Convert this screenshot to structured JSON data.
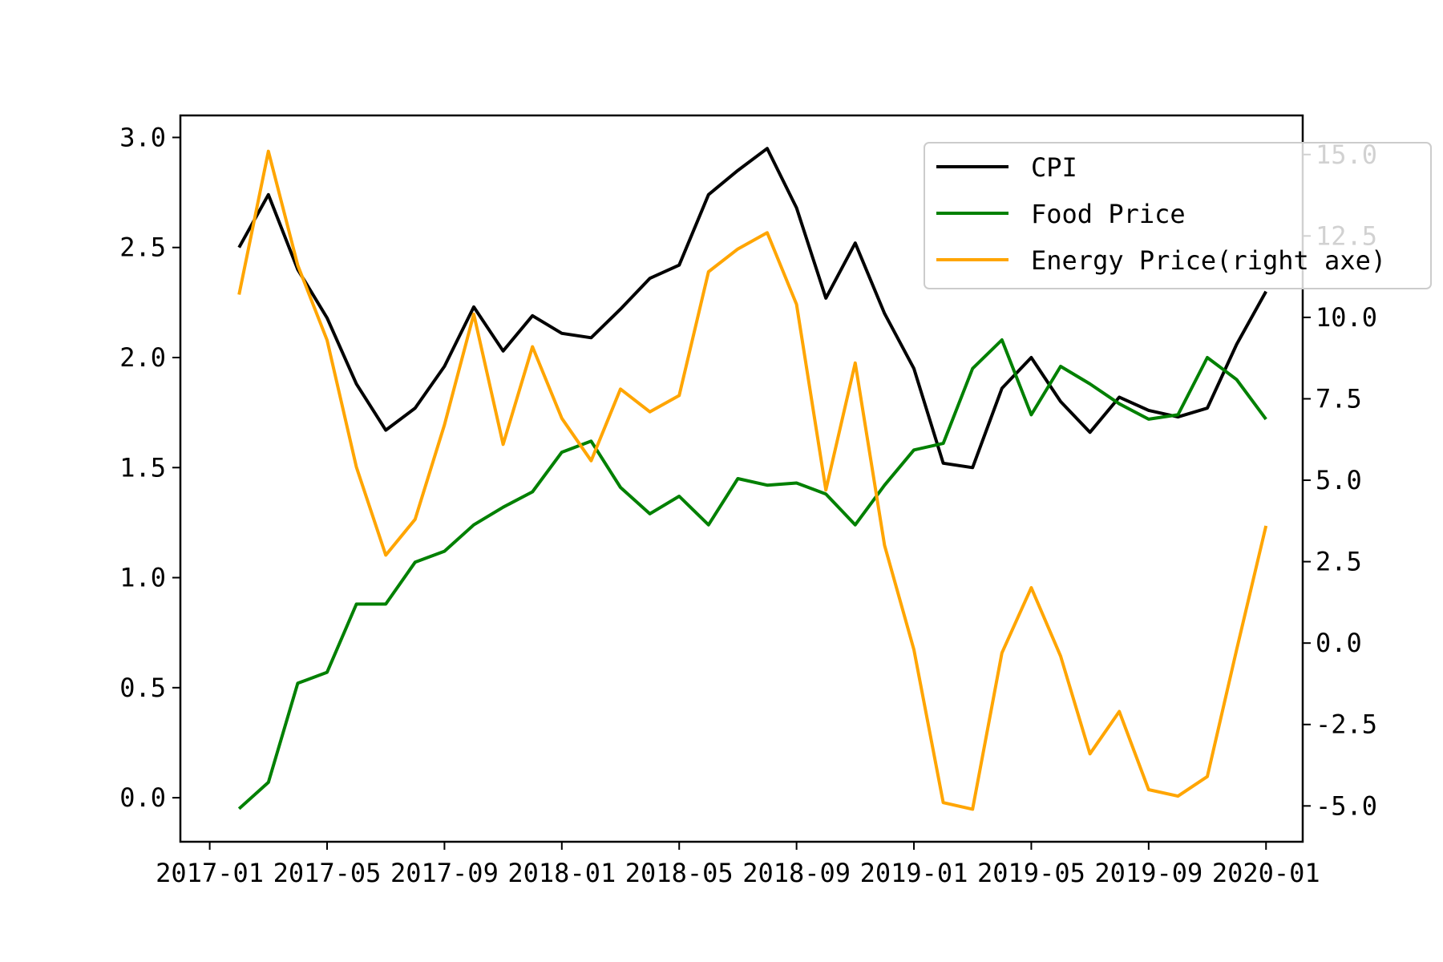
{
  "chart_data": {
    "type": "line",
    "x": [
      "2017-02",
      "2017-03",
      "2017-04",
      "2017-05",
      "2017-06",
      "2017-07",
      "2017-08",
      "2017-09",
      "2017-10",
      "2017-11",
      "2017-12",
      "2018-01",
      "2018-02",
      "2018-03",
      "2018-04",
      "2018-05",
      "2018-06",
      "2018-07",
      "2018-08",
      "2018-09",
      "2018-10",
      "2018-11",
      "2018-12",
      "2019-01",
      "2019-02",
      "2019-03",
      "2019-04",
      "2019-05",
      "2019-06",
      "2019-07",
      "2019-08",
      "2019-09",
      "2019-10",
      "2019-11",
      "2019-12",
      "2020-01"
    ],
    "x_ticks": [
      "2017-01",
      "2017-05",
      "2017-09",
      "2018-01",
      "2018-05",
      "2018-09",
      "2019-01",
      "2019-05",
      "2019-09",
      "2020-01"
    ],
    "ylim": [
      -0.2,
      3.1
    ],
    "y_ticks": [
      "0.0",
      "0.5",
      "1.0",
      "1.5",
      "2.0",
      "2.5",
      "3.0"
    ],
    "y2lim": [
      -6.1,
      16.2
    ],
    "y2_ticks": [
      "-5.0",
      "-2.5",
      "0.0",
      "2.5",
      "5.0",
      "7.5",
      "10.0",
      "12.5",
      "15.0"
    ],
    "legend_position": "upper-right",
    "grid": false,
    "series": [
      {
        "name": "CPI",
        "axis": "left",
        "color": "#000000",
        "values": [
          2.5,
          2.74,
          2.4,
          2.18,
          1.88,
          1.67,
          1.77,
          1.96,
          2.23,
          2.03,
          2.19,
          2.11,
          2.09,
          2.22,
          2.36,
          2.42,
          2.74,
          2.85,
          2.95,
          2.68,
          2.27,
          2.52,
          2.2,
          1.95,
          1.52,
          1.5,
          1.86,
          2.0,
          1.8,
          1.66,
          1.82,
          1.76,
          1.73,
          1.77,
          2.06,
          2.3
        ]
      },
      {
        "name": "Food Price",
        "axis": "left",
        "color": "#008000",
        "values": [
          -0.05,
          0.07,
          0.52,
          0.57,
          0.88,
          0.88,
          1.07,
          1.12,
          1.24,
          1.32,
          1.39,
          1.57,
          1.62,
          1.41,
          1.29,
          1.37,
          1.24,
          1.45,
          1.42,
          1.43,
          1.38,
          1.24,
          1.42,
          1.58,
          1.61,
          1.95,
          2.08,
          1.74,
          1.96,
          1.88,
          1.79,
          1.72,
          1.74,
          2.0,
          1.9,
          1.72
        ]
      },
      {
        "name": "Energy Price(right axe)",
        "axis": "right",
        "color": "#FFA500",
        "values": [
          10.7,
          15.1,
          11.6,
          9.3,
          5.4,
          2.7,
          3.8,
          6.7,
          10.1,
          6.1,
          9.1,
          6.9,
          5.6,
          7.8,
          7.1,
          7.6,
          11.4,
          12.1,
          12.6,
          10.4,
          4.7,
          8.6,
          3.0,
          -0.2,
          -4.9,
          -5.1,
          -0.3,
          1.7,
          -0.4,
          -3.4,
          -2.1,
          -4.5,
          -4.7,
          -4.1,
          -0.2,
          3.6
        ]
      }
    ]
  }
}
